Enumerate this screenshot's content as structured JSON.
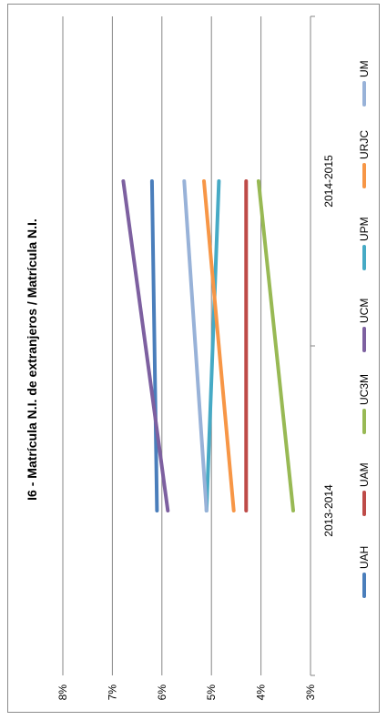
{
  "chart_data": {
    "type": "line",
    "title": "I6 - Matrícula N.I. de extranjeros / Matrícula N.I.",
    "categories": [
      "2013-2014",
      "2014-2015"
    ],
    "ylim": [
      0.03,
      0.08
    ],
    "y_ticks": [
      "3%",
      "4%",
      "5%",
      "6%",
      "7%",
      "8%"
    ],
    "grid": true,
    "legend_position": "bottom",
    "orientation": "rotated-90",
    "series": [
      {
        "name": "UAH",
        "values": [
          0.061,
          0.062
        ],
        "color": "#4a7ebb"
      },
      {
        "name": "UAM",
        "values": [
          0.043,
          0.043
        ],
        "color": "#be4b48"
      },
      {
        "name": "UC3M",
        "values": [
          0.0335,
          0.0405
        ],
        "color": "#98b954"
      },
      {
        "name": "UCM",
        "values": [
          0.0588,
          0.0678
        ],
        "color": "#7d60a0"
      },
      {
        "name": "UPM",
        "values": [
          0.051,
          0.0485
        ],
        "color": "#46aac5"
      },
      {
        "name": "URJC",
        "values": [
          0.0455,
          0.0515
        ],
        "color": "#f79646"
      },
      {
        "name": "UM",
        "values": [
          0.051,
          0.0555
        ],
        "color": "#98b2d8"
      }
    ]
  }
}
